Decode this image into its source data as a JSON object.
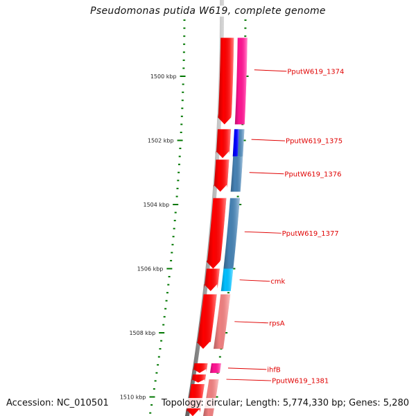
{
  "title": "Pseudomonas putida W619, complete genome",
  "footer": {
    "accession": "Accession: NC_010501",
    "summary": "Topology: circular; Length: 5,774,330 bp; Genes: 5,280"
  },
  "colors": {
    "backbone": "#808080",
    "tick": "#007700",
    "label": "#e00000",
    "cds_forward_strand": "#ff0000"
  },
  "chart_data": {
    "type": "genome-map",
    "title": "Pseudomonas putida W619, complete genome",
    "axis_unit": "kbp",
    "visible_range_kbp": [
      1498.8,
      1510.6
    ],
    "tick_labels": [
      {
        "kbp": 1500,
        "label": "1500 kbp"
      },
      {
        "kbp": 1502,
        "label": "1502 kbp"
      },
      {
        "kbp": 1504,
        "label": "1504 kbp"
      },
      {
        "kbp": 1506,
        "label": "1506 kbp"
      },
      {
        "kbp": 1508,
        "label": "1508 kbp"
      },
      {
        "kbp": 1510,
        "label": "1510 kbp"
      }
    ],
    "minor_tick_interval_kbp": 0.25,
    "outer_track_genes": [
      {
        "name": "PputW619_1374",
        "start_kbp": 1498.8,
        "end_kbp": 1501.5,
        "color": "#ff1493"
      },
      {
        "name": "PputW619_1375",
        "start_kbp": 1501.65,
        "end_kbp": 1502.5,
        "color": "#0000ff",
        "overlay_color": "#4682b4"
      },
      {
        "name": "PputW619_1376",
        "start_kbp": 1502.5,
        "end_kbp": 1503.6,
        "color": "#4682b4"
      },
      {
        "name": "PputW619_1377",
        "start_kbp": 1503.8,
        "end_kbp": 1506.0,
        "color": "#4682b4"
      },
      {
        "name": "cmk",
        "start_kbp": 1506.0,
        "end_kbp": 1506.7,
        "color": "#00bfff"
      },
      {
        "name": "rpsA",
        "start_kbp": 1506.8,
        "end_kbp": 1508.5,
        "color": "#f08080"
      },
      {
        "name": "ihfB",
        "start_kbp": 1508.95,
        "end_kbp": 1509.25,
        "color": "#ff1493"
      },
      {
        "name": "PputW619_1381",
        "start_kbp": 1509.45,
        "end_kbp": 1510.6,
        "color": "#f08080"
      }
    ],
    "inner_track_cds": [
      {
        "start_kbp": 1498.8,
        "end_kbp": 1501.5
      },
      {
        "start_kbp": 1501.65,
        "end_kbp": 1502.55
      },
      {
        "start_kbp": 1502.6,
        "end_kbp": 1503.6
      },
      {
        "start_kbp": 1503.8,
        "end_kbp": 1506.0
      },
      {
        "start_kbp": 1506.0,
        "end_kbp": 1506.7
      },
      {
        "start_kbp": 1506.8,
        "end_kbp": 1508.5
      },
      {
        "start_kbp": 1508.95,
        "end_kbp": 1509.25
      },
      {
        "start_kbp": 1509.3,
        "end_kbp": 1509.55
      },
      {
        "start_kbp": 1509.6,
        "end_kbp": 1510.6
      }
    ],
    "gene_labels": [
      {
        "text": "PputW619_1374",
        "kbp": 1499.8
      },
      {
        "text": "PputW619_1375",
        "kbp": 1501.97
      },
      {
        "text": "PputW619_1376",
        "kbp": 1503.0
      },
      {
        "text": "PputW619_1377",
        "kbp": 1504.85
      },
      {
        "text": "cmk",
        "kbp": 1506.35
      },
      {
        "text": "rpsA",
        "kbp": 1507.65
      },
      {
        "text": "ihfB",
        "kbp": 1509.1
      },
      {
        "text": "PputW619_1381",
        "kbp": 1509.45
      }
    ]
  }
}
